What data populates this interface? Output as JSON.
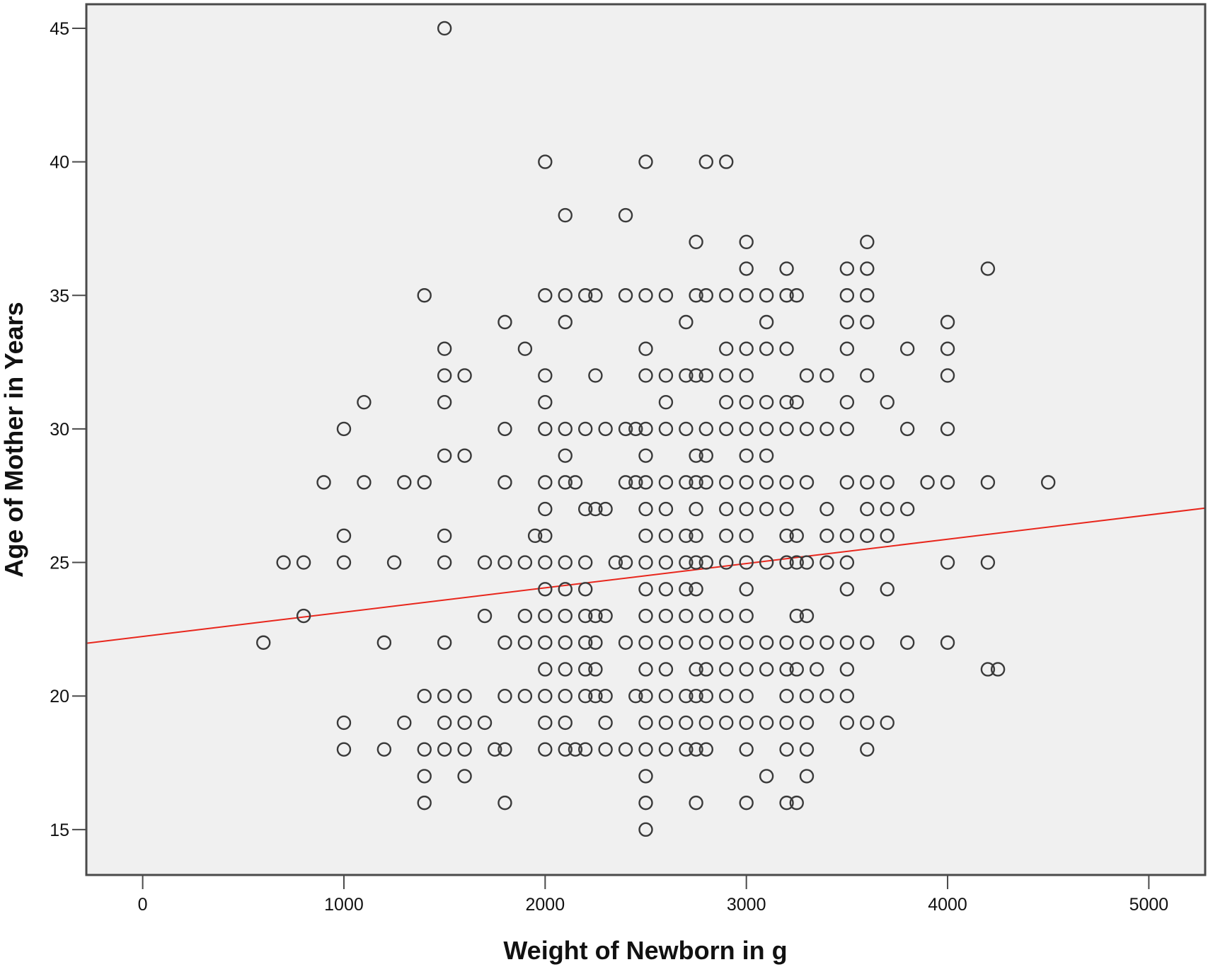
{
  "chart_data": {
    "type": "scatter",
    "xlabel": "Weight of Newborn in g",
    "ylabel": "Age of Mother in Years",
    "xlim": [
      -280,
      5280
    ],
    "ylim": [
      13.3,
      45.9
    ],
    "x_ticks": [
      0,
      1000,
      2000,
      3000,
      4000,
      5000
    ],
    "y_ticks": [
      15,
      20,
      25,
      30,
      35,
      40,
      45
    ],
    "grid": false,
    "legend": "none",
    "colors": {
      "plot_background": "#f0f0f0",
      "marker": "#3a3a3a",
      "fit_line": "#e8261c",
      "frame": "#4a4a4a"
    },
    "marker": "open-circle",
    "fit_line": {
      "slope": 0.00091,
      "intercept": 22.23
    },
    "points": [
      [
        1500,
        45
      ],
      [
        2000,
        40
      ],
      [
        2500,
        40
      ],
      [
        2800,
        40
      ],
      [
        2900,
        40
      ],
      [
        2100,
        38
      ],
      [
        2400,
        38
      ],
      [
        2750,
        37
      ],
      [
        3000,
        37
      ],
      [
        3600,
        37
      ],
      [
        3000,
        36
      ],
      [
        3200,
        36
      ],
      [
        3500,
        36
      ],
      [
        3600,
        36
      ],
      [
        4200,
        36
      ],
      [
        1400,
        35
      ],
      [
        2000,
        35
      ],
      [
        2100,
        35
      ],
      [
        2200,
        35
      ],
      [
        2250,
        35
      ],
      [
        2400,
        35
      ],
      [
        2500,
        35
      ],
      [
        2600,
        35
      ],
      [
        2750,
        35
      ],
      [
        2800,
        35
      ],
      [
        2900,
        35
      ],
      [
        3000,
        35
      ],
      [
        3100,
        35
      ],
      [
        3200,
        35
      ],
      [
        3250,
        35
      ],
      [
        3500,
        35
      ],
      [
        3600,
        35
      ],
      [
        1800,
        34
      ],
      [
        2100,
        34
      ],
      [
        2700,
        34
      ],
      [
        3100,
        34
      ],
      [
        3500,
        34
      ],
      [
        3600,
        34
      ],
      [
        4000,
        34
      ],
      [
        1500,
        33
      ],
      [
        1900,
        33
      ],
      [
        2500,
        33
      ],
      [
        2900,
        33
      ],
      [
        3000,
        33
      ],
      [
        3100,
        33
      ],
      [
        3200,
        33
      ],
      [
        3500,
        33
      ],
      [
        3800,
        33
      ],
      [
        4000,
        33
      ],
      [
        1500,
        32
      ],
      [
        1600,
        32
      ],
      [
        2000,
        32
      ],
      [
        2250,
        32
      ],
      [
        2500,
        32
      ],
      [
        2600,
        32
      ],
      [
        2700,
        32
      ],
      [
        2750,
        32
      ],
      [
        2800,
        32
      ],
      [
        2900,
        32
      ],
      [
        3000,
        32
      ],
      [
        3300,
        32
      ],
      [
        3400,
        32
      ],
      [
        3600,
        32
      ],
      [
        4000,
        32
      ],
      [
        1100,
        31
      ],
      [
        1500,
        31
      ],
      [
        2000,
        31
      ],
      [
        2600,
        31
      ],
      [
        2900,
        31
      ],
      [
        3000,
        31
      ],
      [
        3100,
        31
      ],
      [
        3200,
        31
      ],
      [
        3250,
        31
      ],
      [
        3500,
        31
      ],
      [
        3700,
        31
      ],
      [
        1000,
        30
      ],
      [
        1800,
        30
      ],
      [
        2000,
        30
      ],
      [
        2100,
        30
      ],
      [
        2200,
        30
      ],
      [
        2300,
        30
      ],
      [
        2400,
        30
      ],
      [
        2450,
        30
      ],
      [
        2500,
        30
      ],
      [
        2600,
        30
      ],
      [
        2700,
        30
      ],
      [
        2800,
        30
      ],
      [
        2900,
        30
      ],
      [
        3000,
        30
      ],
      [
        3100,
        30
      ],
      [
        3200,
        30
      ],
      [
        3300,
        30
      ],
      [
        3400,
        30
      ],
      [
        3500,
        30
      ],
      [
        3800,
        30
      ],
      [
        4000,
        30
      ],
      [
        1500,
        29
      ],
      [
        1600,
        29
      ],
      [
        2100,
        29
      ],
      [
        2500,
        29
      ],
      [
        2750,
        29
      ],
      [
        2800,
        29
      ],
      [
        3000,
        29
      ],
      [
        3100,
        29
      ],
      [
        900,
        28
      ],
      [
        1100,
        28
      ],
      [
        1300,
        28
      ],
      [
        1400,
        28
      ],
      [
        1800,
        28
      ],
      [
        2000,
        28
      ],
      [
        2100,
        28
      ],
      [
        2150,
        28
      ],
      [
        2400,
        28
      ],
      [
        2450,
        28
      ],
      [
        2500,
        28
      ],
      [
        2600,
        28
      ],
      [
        2700,
        28
      ],
      [
        2750,
        28
      ],
      [
        2800,
        28
      ],
      [
        2900,
        28
      ],
      [
        3000,
        28
      ],
      [
        3100,
        28
      ],
      [
        3200,
        28
      ],
      [
        3300,
        28
      ],
      [
        3500,
        28
      ],
      [
        3600,
        28
      ],
      [
        3700,
        28
      ],
      [
        3900,
        28
      ],
      [
        4000,
        28
      ],
      [
        4200,
        28
      ],
      [
        4500,
        28
      ],
      [
        2000,
        27
      ],
      [
        2200,
        27
      ],
      [
        2250,
        27
      ],
      [
        2300,
        27
      ],
      [
        2500,
        27
      ],
      [
        2600,
        27
      ],
      [
        2750,
        27
      ],
      [
        2900,
        27
      ],
      [
        3000,
        27
      ],
      [
        3100,
        27
      ],
      [
        3200,
        27
      ],
      [
        3400,
        27
      ],
      [
        3600,
        27
      ],
      [
        3700,
        27
      ],
      [
        3800,
        27
      ],
      [
        1000,
        26
      ],
      [
        1500,
        26
      ],
      [
        1950,
        26
      ],
      [
        2000,
        26
      ],
      [
        2500,
        26
      ],
      [
        2600,
        26
      ],
      [
        2700,
        26
      ],
      [
        2750,
        26
      ],
      [
        2900,
        26
      ],
      [
        3000,
        26
      ],
      [
        3200,
        26
      ],
      [
        3250,
        26
      ],
      [
        3400,
        26
      ],
      [
        3500,
        26
      ],
      [
        3600,
        26
      ],
      [
        3700,
        26
      ],
      [
        700,
        25
      ],
      [
        800,
        25
      ],
      [
        1000,
        25
      ],
      [
        1250,
        25
      ],
      [
        1500,
        25
      ],
      [
        1700,
        25
      ],
      [
        1800,
        25
      ],
      [
        1900,
        25
      ],
      [
        2000,
        25
      ],
      [
        2100,
        25
      ],
      [
        2200,
        25
      ],
      [
        2350,
        25
      ],
      [
        2400,
        25
      ],
      [
        2500,
        25
      ],
      [
        2600,
        25
      ],
      [
        2700,
        25
      ],
      [
        2750,
        25
      ],
      [
        2800,
        25
      ],
      [
        2900,
        25
      ],
      [
        3000,
        25
      ],
      [
        3100,
        25
      ],
      [
        3200,
        25
      ],
      [
        3250,
        25
      ],
      [
        3300,
        25
      ],
      [
        3400,
        25
      ],
      [
        3500,
        25
      ],
      [
        4000,
        25
      ],
      [
        4200,
        25
      ],
      [
        2000,
        24
      ],
      [
        2100,
        24
      ],
      [
        2200,
        24
      ],
      [
        2500,
        24
      ],
      [
        2600,
        24
      ],
      [
        2700,
        24
      ],
      [
        2750,
        24
      ],
      [
        3000,
        24
      ],
      [
        3500,
        24
      ],
      [
        3700,
        24
      ],
      [
        800,
        23
      ],
      [
        1700,
        23
      ],
      [
        1900,
        23
      ],
      [
        2000,
        23
      ],
      [
        2100,
        23
      ],
      [
        2200,
        23
      ],
      [
        2250,
        23
      ],
      [
        2300,
        23
      ],
      [
        2500,
        23
      ],
      [
        2600,
        23
      ],
      [
        2700,
        23
      ],
      [
        2800,
        23
      ],
      [
        2900,
        23
      ],
      [
        3000,
        23
      ],
      [
        3250,
        23
      ],
      [
        3300,
        23
      ],
      [
        600,
        22
      ],
      [
        1200,
        22
      ],
      [
        1500,
        22
      ],
      [
        1800,
        22
      ],
      [
        1900,
        22
      ],
      [
        2000,
        22
      ],
      [
        2100,
        22
      ],
      [
        2200,
        22
      ],
      [
        2250,
        22
      ],
      [
        2400,
        22
      ],
      [
        2500,
        22
      ],
      [
        2600,
        22
      ],
      [
        2700,
        22
      ],
      [
        2800,
        22
      ],
      [
        2900,
        22
      ],
      [
        3000,
        22
      ],
      [
        3100,
        22
      ],
      [
        3200,
        22
      ],
      [
        3300,
        22
      ],
      [
        3400,
        22
      ],
      [
        3500,
        22
      ],
      [
        3600,
        22
      ],
      [
        3800,
        22
      ],
      [
        4000,
        22
      ],
      [
        2000,
        21
      ],
      [
        2100,
        21
      ],
      [
        2200,
        21
      ],
      [
        2250,
        21
      ],
      [
        2500,
        21
      ],
      [
        2600,
        21
      ],
      [
        2750,
        21
      ],
      [
        2800,
        21
      ],
      [
        2900,
        21
      ],
      [
        3000,
        21
      ],
      [
        3100,
        21
      ],
      [
        3200,
        21
      ],
      [
        3250,
        21
      ],
      [
        3350,
        21
      ],
      [
        3500,
        21
      ],
      [
        4200,
        21
      ],
      [
        4250,
        21
      ],
      [
        1400,
        20
      ],
      [
        1500,
        20
      ],
      [
        1600,
        20
      ],
      [
        1800,
        20
      ],
      [
        1900,
        20
      ],
      [
        2000,
        20
      ],
      [
        2100,
        20
      ],
      [
        2200,
        20
      ],
      [
        2250,
        20
      ],
      [
        2300,
        20
      ],
      [
        2450,
        20
      ],
      [
        2500,
        20
      ],
      [
        2600,
        20
      ],
      [
        2700,
        20
      ],
      [
        2750,
        20
      ],
      [
        2800,
        20
      ],
      [
        2900,
        20
      ],
      [
        3000,
        20
      ],
      [
        3200,
        20
      ],
      [
        3300,
        20
      ],
      [
        3400,
        20
      ],
      [
        3500,
        20
      ],
      [
        1000,
        19
      ],
      [
        1300,
        19
      ],
      [
        1500,
        19
      ],
      [
        1600,
        19
      ],
      [
        1700,
        19
      ],
      [
        2000,
        19
      ],
      [
        2100,
        19
      ],
      [
        2300,
        19
      ],
      [
        2500,
        19
      ],
      [
        2600,
        19
      ],
      [
        2700,
        19
      ],
      [
        2800,
        19
      ],
      [
        2900,
        19
      ],
      [
        3000,
        19
      ],
      [
        3100,
        19
      ],
      [
        3200,
        19
      ],
      [
        3300,
        19
      ],
      [
        3500,
        19
      ],
      [
        3600,
        19
      ],
      [
        3700,
        19
      ],
      [
        1000,
        18
      ],
      [
        1200,
        18
      ],
      [
        1400,
        18
      ],
      [
        1500,
        18
      ],
      [
        1600,
        18
      ],
      [
        1750,
        18
      ],
      [
        1800,
        18
      ],
      [
        2000,
        18
      ],
      [
        2100,
        18
      ],
      [
        2150,
        18
      ],
      [
        2200,
        18
      ],
      [
        2300,
        18
      ],
      [
        2400,
        18
      ],
      [
        2500,
        18
      ],
      [
        2600,
        18
      ],
      [
        2700,
        18
      ],
      [
        2750,
        18
      ],
      [
        2800,
        18
      ],
      [
        3000,
        18
      ],
      [
        3200,
        18
      ],
      [
        3300,
        18
      ],
      [
        3600,
        18
      ],
      [
        1400,
        17
      ],
      [
        1600,
        17
      ],
      [
        2500,
        17
      ],
      [
        3100,
        17
      ],
      [
        3300,
        17
      ],
      [
        1400,
        16
      ],
      [
        1800,
        16
      ],
      [
        2500,
        16
      ],
      [
        2750,
        16
      ],
      [
        3000,
        16
      ],
      [
        3200,
        16
      ],
      [
        3250,
        16
      ],
      [
        2500,
        15
      ]
    ]
  }
}
